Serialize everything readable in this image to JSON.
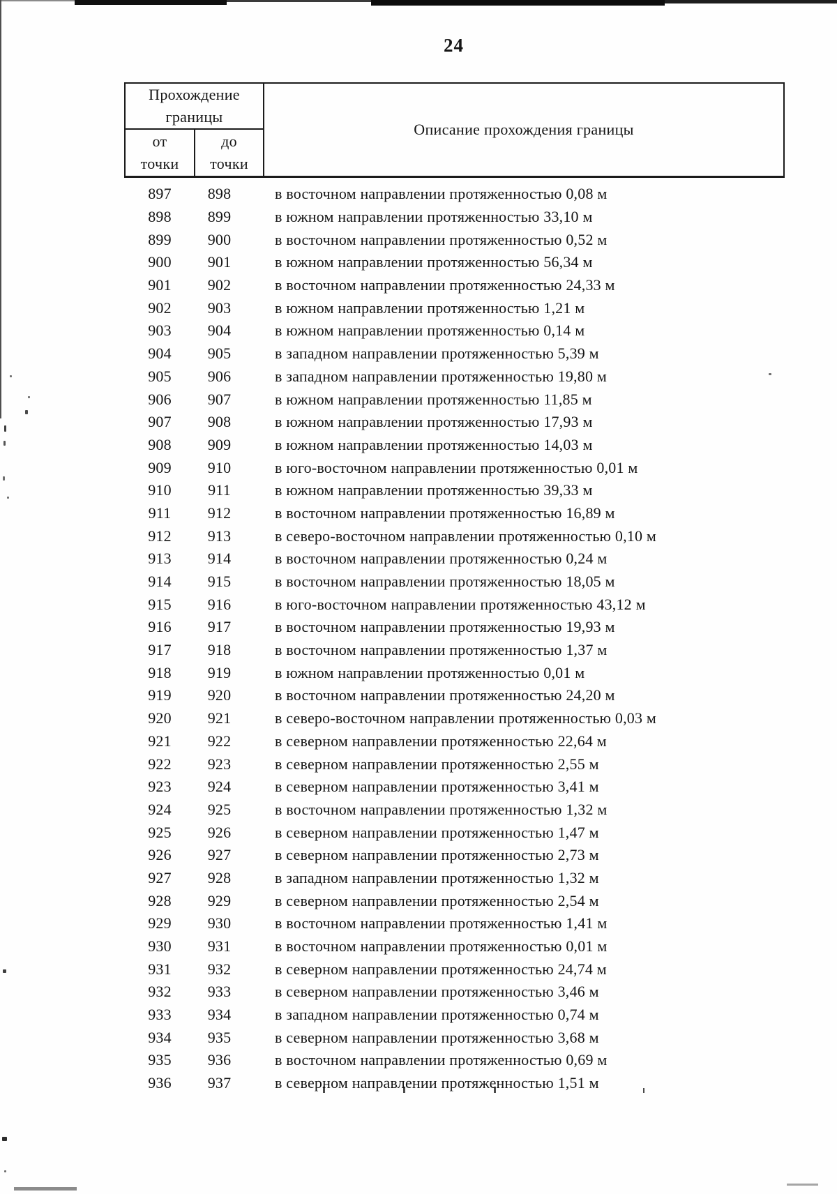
{
  "page": {
    "number": "24"
  },
  "table": {
    "header": {
      "group_title": "Прохождение\nграницы",
      "col_from": "от\nточки",
      "col_to": "до\nточки",
      "col_description": "Описание прохождения границы"
    },
    "rows": [
      {
        "from": "897",
        "to": "898",
        "description": "в восточном направлении протяженностью 0,08 м"
      },
      {
        "from": "898",
        "to": "899",
        "description": "в южном направлении протяженностью 33,10 м"
      },
      {
        "from": "899",
        "to": "900",
        "description": "в восточном направлении протяженностью 0,52 м"
      },
      {
        "from": "900",
        "to": "901",
        "description": "в южном направлении протяженностью 56,34 м"
      },
      {
        "from": "901",
        "to": "902",
        "description": "в восточном направлении протяженностью 24,33 м"
      },
      {
        "from": "902",
        "to": "903",
        "description": "в южном направлении протяженностью 1,21 м"
      },
      {
        "from": "903",
        "to": "904",
        "description": "в южном направлении протяженностью 0,14 м"
      },
      {
        "from": "904",
        "to": "905",
        "description": "в западном направлении протяженностью 5,39 м"
      },
      {
        "from": "905",
        "to": "906",
        "description": "в западном направлении протяженностью 19,80 м"
      },
      {
        "from": "906",
        "to": "907",
        "description": "в южном направлении протяженностью 11,85 м"
      },
      {
        "from": "907",
        "to": "908",
        "description": "в южном направлении протяженностью 17,93 м"
      },
      {
        "from": "908",
        "to": "909",
        "description": "в южном направлении протяженностью 14,03 м"
      },
      {
        "from": "909",
        "to": "910",
        "description": "в юго-восточном направлении протяженностью 0,01 м"
      },
      {
        "from": "910",
        "to": "911",
        "description": "в южном направлении протяженностью 39,33 м"
      },
      {
        "from": "911",
        "to": "912",
        "description": "в восточном направлении протяженностью 16,89 м"
      },
      {
        "from": "912",
        "to": "913",
        "description": "в северо-восточном направлении протяженностью 0,10 м"
      },
      {
        "from": "913",
        "to": "914",
        "description": "в восточном направлении протяженностью 0,24 м"
      },
      {
        "from": "914",
        "to": "915",
        "description": "в восточном направлении протяженностью 18,05 м"
      },
      {
        "from": "915",
        "to": "916",
        "description": "в юго-восточном направлении протяженностью 43,12 м"
      },
      {
        "from": "916",
        "to": "917",
        "description": "в восточном направлении протяженностью 19,93 м"
      },
      {
        "from": "917",
        "to": "918",
        "description": "в восточном направлении протяженностью 1,37 м"
      },
      {
        "from": "918",
        "to": "919",
        "description": "в южном направлении протяженностью 0,01 м"
      },
      {
        "from": "919",
        "to": "920",
        "description": "в восточном направлении протяженностью 24,20 м"
      },
      {
        "from": "920",
        "to": "921",
        "description": "в северо-восточном направлении протяженностью 0,03 м"
      },
      {
        "from": "921",
        "to": "922",
        "description": "в северном направлении протяженностью 22,64 м"
      },
      {
        "from": "922",
        "to": "923",
        "description": "в северном направлении протяженностью 2,55 м"
      },
      {
        "from": "923",
        "to": "924",
        "description": "в северном направлении протяженностью 3,41 м"
      },
      {
        "from": "924",
        "to": "925",
        "description": "в восточном направлении протяженностью 1,32 м"
      },
      {
        "from": "925",
        "to": "926",
        "description": "в северном направлении протяженностью 1,47 м"
      },
      {
        "from": "926",
        "to": "927",
        "description": "в северном направлении протяженностью 2,73 м"
      },
      {
        "from": "927",
        "to": "928",
        "description": "в западном направлении протяженностью 1,32 м"
      },
      {
        "from": "928",
        "to": "929",
        "description": "в северном направлении протяженностью 2,54 м"
      },
      {
        "from": "929",
        "to": "930",
        "description": "в восточном направлении протяженностью 1,41 м"
      },
      {
        "from": "930",
        "to": "931",
        "description": "в восточном направлении протяженностью 0,01 м"
      },
      {
        "from": "931",
        "to": "932",
        "description": "в северном направлении протяженностью 24,74 м"
      },
      {
        "from": "932",
        "to": "933",
        "description": "в северном направлении протяженностью 3,46 м"
      },
      {
        "from": "933",
        "to": "934",
        "description": "в западном направлении протяженностью 0,74 м"
      },
      {
        "from": "934",
        "to": "935",
        "description": "в северном направлении протяженностью 3,68 м"
      },
      {
        "from": "935",
        "to": "936",
        "description": "в восточном направлении протяженностью 0,69 м"
      },
      {
        "from": "936",
        "to": "937",
        "description": "в северном направлении протяженностью 1,51 м"
      }
    ]
  }
}
